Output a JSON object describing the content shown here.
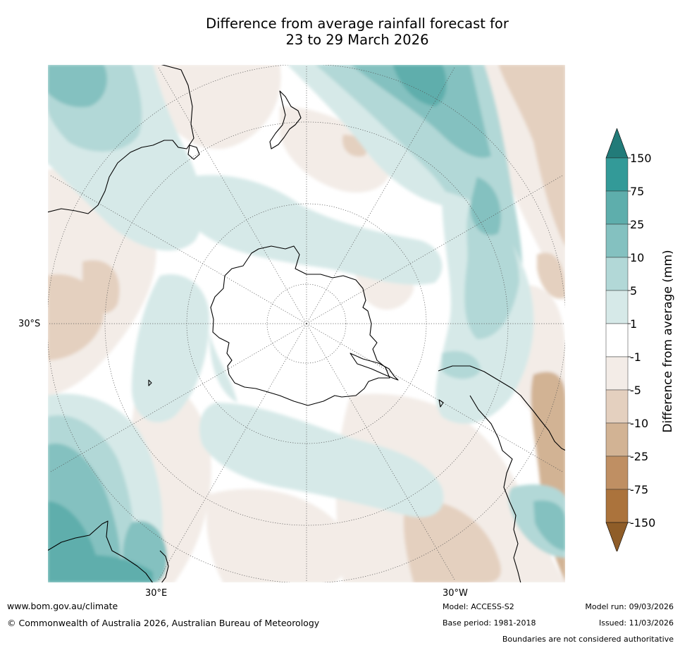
{
  "title": {
    "line1": "Difference from average rainfall forecast for",
    "line2": "23 to 29 March 2026"
  },
  "map": {
    "projection": "south polar stereographic",
    "labels": {
      "lat": "30°S",
      "lon_east": "30°E",
      "lon_west": "30°W"
    },
    "colors": {
      "land_outline": "#000000",
      "neutral": "#ffffff",
      "dry_1": "#f3ece7",
      "dry_2": "#e4d0bf",
      "dry_3": "#d2b394",
      "wet_1": "#d6e9e8",
      "wet_2": "#b2d8d7",
      "wet_3": "#84c1c0",
      "wet_4": "#5eaeac"
    }
  },
  "colorbar": {
    "title": "Difference from average (mm)",
    "tick_labels": [
      "150",
      "75",
      "25",
      "10",
      "5",
      "1",
      "-1",
      "-5",
      "-10",
      "-25",
      "-75",
      "-150"
    ],
    "bins": [
      {
        "range": "above 150",
        "color": "#227b79"
      },
      {
        "range": "75 to 150",
        "color": "#339a98"
      },
      {
        "range": "25 to 75",
        "color": "#5eaeac"
      },
      {
        "range": "10 to 25",
        "color": "#84c1c0"
      },
      {
        "range": "5 to 10",
        "color": "#b2d8d7"
      },
      {
        "range": "1 to 5",
        "color": "#d6e9e8"
      },
      {
        "range": "-1 to 1",
        "color": "#ffffff"
      },
      {
        "range": "-5 to -1",
        "color": "#f3ece7"
      },
      {
        "range": "-10 to -5",
        "color": "#e4d0bf"
      },
      {
        "range": "-25 to -10",
        "color": "#d2b394"
      },
      {
        "range": "-75 to -25",
        "color": "#bf8f63"
      },
      {
        "range": "-150 to -75",
        "color": "#ab733c"
      },
      {
        "range": "below -150",
        "color": "#8f5d28"
      }
    ]
  },
  "footer": {
    "website": "www.bom.gov.au/climate",
    "copyright": "© Commonwealth of Australia 2026, Australian Bureau of Meteorology",
    "model": "Model: ACCESS-S2",
    "base_period": "Base period: 1981-2018",
    "model_run": "Model run: 09/03/2026",
    "issued": "Issued: 11/03/2026",
    "disclaimer": "Boundaries are not considered authoritative"
  }
}
